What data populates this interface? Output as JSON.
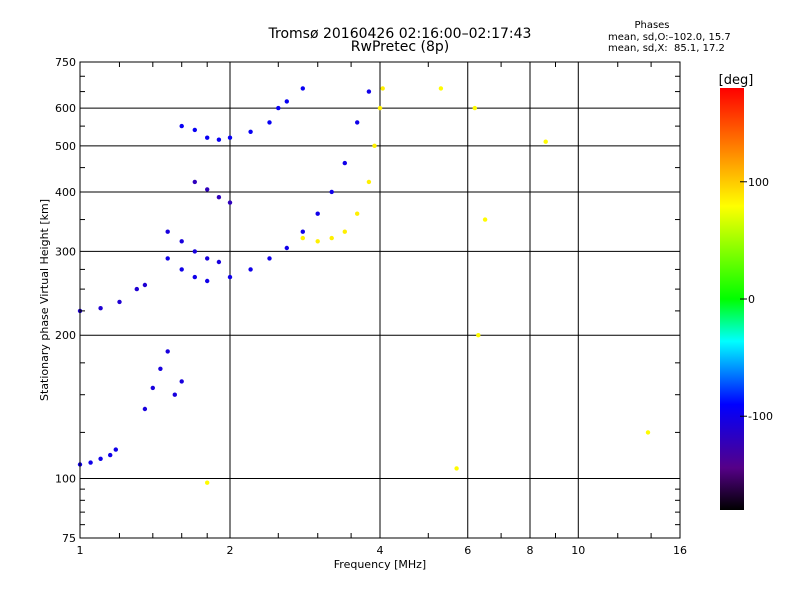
{
  "header": {
    "title_line1": "Tromsø 20160426 02:16:00–02:17:43",
    "title_line2": "RwPretec (8p)",
    "stats_heading": "Phases",
    "stats_o": "mean, sd,O:–102.0, 15.7",
    "stats_x": "mean, sd,X:  85.1, 17.2"
  },
  "colorbar": {
    "label": "[deg]",
    "range": [
      -180,
      180
    ],
    "ticks": [
      "100",
      "0",
      "-100"
    ],
    "tick_values": [
      100,
      0,
      -100
    ]
  },
  "chart_data": {
    "type": "scatter",
    "title": "Tromsø 20160426 02:16:00–02:17:43",
    "subtitle": "RwPretec (8p)",
    "xlabel": "Frequency [MHz]",
    "ylabel": "Stationary phase Virtual Height [km]",
    "xscale": "log",
    "yscale": "log",
    "xlim": [
      1,
      16
    ],
    "ylim": [
      75,
      750
    ],
    "xticks": [
      1,
      2,
      4,
      6,
      8,
      10,
      16
    ],
    "xtick_labels": [
      "1",
      "2",
      "4",
      "6",
      "8",
      "10",
      "16"
    ],
    "yticks": [
      75,
      100,
      200,
      300,
      400,
      500,
      600,
      750
    ],
    "ytick_labels": [
      "75",
      "100",
      "200",
      "300",
      "400",
      "500",
      "600",
      "750"
    ],
    "color_by": "phase [deg]",
    "series": [
      {
        "points": [
          [
            1.0,
            107
          ],
          [
            1.05,
            108
          ],
          [
            1.1,
            110
          ],
          [
            1.15,
            112
          ],
          [
            1.18,
            115
          ]
        ],
        "phase": -100
      },
      {
        "points": [
          [
            1.35,
            140
          ],
          [
            1.4,
            155
          ],
          [
            1.45,
            170
          ],
          [
            1.5,
            185
          ],
          [
            1.55,
            150
          ],
          [
            1.6,
            160
          ]
        ],
        "phase": -105
      },
      {
        "points": [
          [
            1.0,
            225
          ],
          [
            1.1,
            228
          ],
          [
            1.2,
            235
          ],
          [
            1.3,
            250
          ],
          [
            1.35,
            255
          ]
        ],
        "phase": -110
      },
      {
        "points": [
          [
            1.5,
            290
          ],
          [
            1.6,
            275
          ],
          [
            1.7,
            265
          ],
          [
            1.8,
            260
          ],
          [
            2.0,
            265
          ],
          [
            2.2,
            275
          ],
          [
            2.4,
            290
          ],
          [
            2.6,
            305
          ],
          [
            2.8,
            330
          ],
          [
            3.0,
            360
          ],
          [
            3.2,
            400
          ],
          [
            3.4,
            460
          ],
          [
            3.6,
            560
          ],
          [
            3.8,
            650
          ]
        ],
        "phase": -100
      },
      {
        "points": [
          [
            1.5,
            330
          ],
          [
            1.6,
            315
          ],
          [
            1.7,
            300
          ],
          [
            1.8,
            290
          ],
          [
            1.9,
            285
          ]
        ],
        "phase": -105
      },
      {
        "points": [
          [
            1.6,
            550
          ],
          [
            1.7,
            540
          ],
          [
            1.8,
            520
          ],
          [
            1.9,
            515
          ],
          [
            2.0,
            520
          ],
          [
            2.2,
            535
          ],
          [
            2.4,
            560
          ],
          [
            2.5,
            600
          ],
          [
            2.6,
            620
          ],
          [
            2.8,
            660
          ]
        ],
        "phase": -95
      },
      {
        "points": [
          [
            1.7,
            420
          ],
          [
            1.8,
            405
          ],
          [
            1.9,
            390
          ],
          [
            2.0,
            380
          ]
        ],
        "phase": -120
      },
      {
        "points": [
          [
            2.8,
            320
          ],
          [
            3.0,
            315
          ],
          [
            3.2,
            320
          ],
          [
            3.4,
            330
          ],
          [
            3.6,
            360
          ],
          [
            3.8,
            420
          ],
          [
            3.9,
            500
          ],
          [
            4.0,
            600
          ],
          [
            4.05,
            660
          ]
        ],
        "phase": 85
      },
      {
        "points": [
          [
            5.7,
            105
          ],
          [
            6.2,
            600
          ],
          [
            6.3,
            200
          ],
          [
            6.5,
            350
          ],
          [
            8.6,
            510
          ],
          [
            13.8,
            125
          ],
          [
            1.8,
            98
          ],
          [
            5.3,
            660
          ]
        ],
        "phase": 80
      }
    ]
  }
}
